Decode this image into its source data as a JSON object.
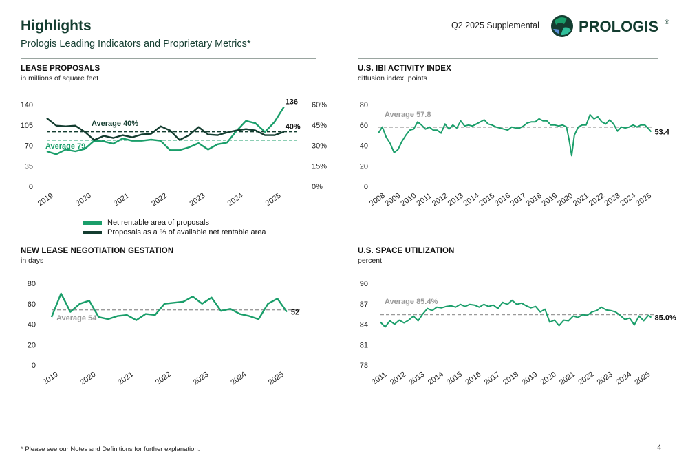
{
  "header": {
    "title": "Highlights",
    "subtitle": "Prologis Leading Indicators and Proprietary Metrics*",
    "supplemental": "Q2 2025 Supplemental",
    "logo_text": "PROLOGIS",
    "logo_mark": "®"
  },
  "colors": {
    "green": "#1a9e6a",
    "dark": "#143d30",
    "avg_gray": "#9a9a9a",
    "divider": "#9aa5a0"
  },
  "footnote": "* Please see our Notes and Definitions for further explanation.",
  "page_number": "4",
  "panels": {
    "lease": {
      "title": "LEASE PROPOSALS",
      "subtitle": "in millions of square feet"
    },
    "ibi": {
      "title": "U.S. IBI ACTIVITY INDEX",
      "subtitle": "diffusion index, points"
    },
    "gestation": {
      "title": "NEW LEASE NEGOTIATION GESTATION",
      "subtitle": "in days"
    },
    "util": {
      "title": "U.S. SPACE UTILIZATION",
      "subtitle": "percent"
    }
  },
  "chart_data": [
    {
      "id": "lease",
      "type": "line",
      "ylim": [
        0,
        140
      ],
      "yticks": [
        "0",
        "35",
        "70",
        "105",
        "140"
      ],
      "y2lim": [
        0,
        60
      ],
      "y2ticks": [
        "0%",
        "15%",
        "30%",
        "45%",
        "60%"
      ],
      "xticks": [
        "2019",
        "2020",
        "2021",
        "2022",
        "2023",
        "2024",
        "2025"
      ],
      "xlim": [
        2019,
        2025.6
      ],
      "series": [
        {
          "name": "Net rentable area of proposals",
          "axis": "left",
          "color": "#1a9e6a",
          "x": [
            2019.0,
            2019.25,
            2019.5,
            2019.75,
            2020.0,
            2020.25,
            2020.5,
            2020.75,
            2021.0,
            2021.25,
            2021.5,
            2021.75,
            2022.0,
            2022.25,
            2022.5,
            2022.75,
            2023.0,
            2023.25,
            2023.5,
            2023.75,
            2024.0,
            2024.25,
            2024.5,
            2024.75,
            2025.0,
            2025.25
          ],
          "values": [
            60,
            55,
            63,
            60,
            64,
            78,
            77,
            73,
            82,
            78,
            78,
            80,
            78,
            62,
            62,
            67,
            74,
            63,
            72,
            75,
            95,
            112,
            108,
            93,
            110,
            136
          ]
        },
        {
          "name": "Proposals as a % of available net rentable area",
          "axis": "right",
          "color": "#143d30",
          "x": [
            2019.0,
            2019.25,
            2019.5,
            2019.75,
            2020.0,
            2020.25,
            2020.5,
            2020.75,
            2021.0,
            2021.25,
            2021.5,
            2021.75,
            2022.0,
            2022.25,
            2022.5,
            2022.75,
            2023.0,
            2023.25,
            2023.5,
            2023.75,
            2024.0,
            2024.25,
            2024.5,
            2024.75,
            2025.0,
            2025.25
          ],
          "values": [
            50,
            44.5,
            44,
            44.5,
            40,
            34,
            37,
            35.5,
            37.5,
            36,
            38,
            38.5,
            44,
            41,
            34,
            37.5,
            43.5,
            38,
            37.5,
            39.5,
            41,
            42,
            41,
            37.5,
            37.5,
            40
          ]
        }
      ],
      "averages": [
        {
          "label": "Average 40%",
          "axis": "right",
          "value": 40,
          "color": "#143d30"
        },
        {
          "label": "Average 79",
          "axis": "left",
          "value": 79,
          "color": "#1a9e6a"
        }
      ],
      "end_labels": [
        "136",
        "40%"
      ],
      "legend_position": "bottom"
    },
    {
      "id": "ibi",
      "type": "line",
      "ylim": [
        0,
        80
      ],
      "yticks": [
        "0",
        "20",
        "40",
        "60",
        "80"
      ],
      "xticks": [
        "2008",
        "2009",
        "2010",
        "2011",
        "2012",
        "2013",
        "2014",
        "2015",
        "2016",
        "2017",
        "2018",
        "2019",
        "2020",
        "2021",
        "2022",
        "2023",
        "2024",
        "2025"
      ],
      "xlim": [
        2008,
        2025.6
      ],
      "series": [
        {
          "name": "U.S. IBI activity index",
          "color": "#1a9e6a",
          "x": [
            2008.0,
            2008.25,
            2008.5,
            2008.75,
            2009.0,
            2009.25,
            2009.5,
            2009.75,
            2010.0,
            2010.25,
            2010.5,
            2010.75,
            2011.0,
            2011.25,
            2011.5,
            2011.75,
            2012.0,
            2012.25,
            2012.5,
            2012.75,
            2013.0,
            2013.25,
            2013.5,
            2013.75,
            2014.0,
            2014.25,
            2014.5,
            2014.75,
            2015.0,
            2015.25,
            2015.5,
            2015.75,
            2016.0,
            2016.25,
            2016.5,
            2016.75,
            2017.0,
            2017.25,
            2017.5,
            2017.75,
            2018.0,
            2018.25,
            2018.5,
            2018.75,
            2019.0,
            2019.25,
            2019.5,
            2019.75,
            2020.0,
            2020.17,
            2020.33,
            2020.5,
            2020.75,
            2021.0,
            2021.25,
            2021.5,
            2021.75,
            2022.0,
            2022.25,
            2022.5,
            2022.75,
            2023.0,
            2023.25,
            2023.5,
            2023.75,
            2024.0,
            2024.25,
            2024.5,
            2024.75,
            2025.0,
            2025.25,
            2025.4
          ],
          "values": [
            52,
            58,
            48,
            42,
            33,
            36,
            44,
            50,
            55,
            56,
            63,
            60,
            56,
            58,
            55,
            55,
            52,
            61,
            56,
            60,
            57,
            64,
            59,
            60,
            59,
            61,
            63,
            65,
            61,
            60,
            58,
            57,
            56,
            55,
            58,
            57,
            57,
            59,
            62,
            63,
            63,
            66,
            64,
            64,
            60,
            60,
            59,
            60,
            58,
            45,
            30,
            50,
            58,
            60,
            60,
            70,
            66,
            68,
            63,
            61,
            65,
            61,
            54,
            58,
            57,
            58,
            60,
            58,
            60,
            60,
            56,
            53.4
          ]
        }
      ],
      "averages": [
        {
          "label": "Average 57.8",
          "value": 57.8,
          "color": "#9a9a9a"
        }
      ],
      "end_labels": [
        "53.4"
      ]
    },
    {
      "id": "gestation",
      "type": "line",
      "ylim": [
        0,
        80
      ],
      "yticks": [
        "0",
        "20",
        "40",
        "60",
        "80"
      ],
      "xticks": [
        "2019",
        "2020",
        "2021",
        "2022",
        "2023",
        "2024",
        "2025"
      ],
      "xlim": [
        2019,
        2025.6
      ],
      "series": [
        {
          "name": "New lease negotiation gestation",
          "color": "#1a9e6a",
          "x": [
            2019.0,
            2019.25,
            2019.5,
            2019.75,
            2020.0,
            2020.25,
            2020.5,
            2020.75,
            2021.0,
            2021.25,
            2021.5,
            2021.75,
            2022.0,
            2022.25,
            2022.5,
            2022.75,
            2023.0,
            2023.25,
            2023.5,
            2023.75,
            2024.0,
            2024.25,
            2024.5,
            2024.75,
            2025.0,
            2025.25
          ],
          "values": [
            47,
            70,
            52,
            60,
            63,
            47,
            45,
            48,
            49,
            44,
            50,
            49,
            60,
            61,
            62,
            67,
            60,
            66,
            53,
            55,
            50,
            48,
            45,
            60,
            65,
            52
          ]
        }
      ],
      "averages": [
        {
          "label": "Average 54",
          "value": 54,
          "color": "#9a9a9a"
        }
      ],
      "end_labels": [
        "52"
      ]
    },
    {
      "id": "util",
      "type": "line",
      "ylim": [
        78,
        90
      ],
      "yticks": [
        "78",
        "81",
        "84",
        "87",
        "90"
      ],
      "xticks": [
        "2011",
        "2012",
        "2013",
        "2014",
        "2015",
        "2016",
        "2017",
        "2018",
        "2019",
        "2020",
        "2021",
        "2022",
        "2023",
        "2024",
        "2025"
      ],
      "xlim": [
        2011,
        2025.6
      ],
      "series": [
        {
          "name": "U.S. space utilization",
          "color": "#1a9e6a",
          "x": [
            2011.0,
            2011.25,
            2011.5,
            2011.75,
            2012.0,
            2012.25,
            2012.5,
            2012.75,
            2013.0,
            2013.25,
            2013.5,
            2013.75,
            2014.0,
            2014.25,
            2014.5,
            2014.75,
            2015.0,
            2015.25,
            2015.5,
            2015.75,
            2016.0,
            2016.25,
            2016.5,
            2016.75,
            2017.0,
            2017.25,
            2017.5,
            2017.75,
            2018.0,
            2018.25,
            2018.5,
            2018.75,
            2019.0,
            2019.25,
            2019.5,
            2019.75,
            2020.0,
            2020.25,
            2020.5,
            2020.75,
            2021.0,
            2021.25,
            2021.5,
            2021.75,
            2022.0,
            2022.25,
            2022.5,
            2022.75,
            2023.0,
            2023.25,
            2023.5,
            2023.75,
            2024.0,
            2024.25,
            2024.5,
            2024.75,
            2025.0,
            2025.25,
            2025.4
          ],
          "values": [
            84.3,
            83.6,
            84.5,
            84,
            84.6,
            84.2,
            84.6,
            85.2,
            84.5,
            85.5,
            86.3,
            86,
            86.5,
            86.4,
            86.6,
            86.7,
            86.5,
            86.9,
            86.6,
            86.9,
            86.8,
            86.5,
            86.9,
            86.6,
            86.8,
            86.3,
            87.2,
            86.9,
            87.5,
            86.9,
            87.1,
            86.7,
            86.4,
            86.6,
            85.8,
            86.2,
            84.3,
            84.6,
            83.8,
            84.6,
            84.5,
            85.2,
            85.0,
            85.4,
            85.3,
            85.8,
            86.0,
            86.5,
            86.1,
            86.0,
            85.8,
            85.3,
            84.7,
            84.9,
            83.9,
            85.2,
            84.5,
            85.3,
            85.0
          ]
        }
      ],
      "averages": [
        {
          "label": "Average 85.4%",
          "value": 85.4,
          "color": "#9a9a9a"
        }
      ],
      "end_labels": [
        "85.0%"
      ]
    }
  ]
}
